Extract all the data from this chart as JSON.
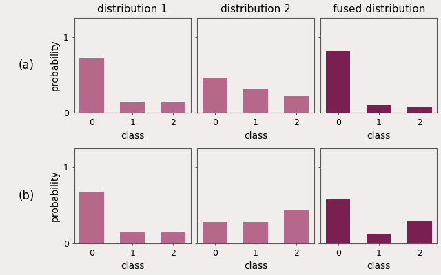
{
  "rows": 2,
  "cols": 3,
  "col_titles": [
    "distribution 1",
    "distribution 2",
    "fused distribution"
  ],
  "row_labels": [
    "(a)",
    "(b)"
  ],
  "xlabel": "class",
  "ylabel": "probability",
  "classes": [
    0,
    1,
    2
  ],
  "ylim": [
    0,
    1.25
  ],
  "yticks": [
    0,
    1
  ],
  "data": [
    [
      [
        0.72,
        0.14,
        0.14
      ],
      [
        0.46,
        0.32,
        0.22
      ],
      [
        0.82,
        0.1,
        0.08
      ]
    ],
    [
      [
        0.68,
        0.16,
        0.16
      ],
      [
        0.28,
        0.28,
        0.44
      ],
      [
        0.58,
        0.13,
        0.29
      ]
    ]
  ],
  "bar_colors": [
    [
      "#b5688a",
      "#b5688a",
      "#7a2050"
    ],
    [
      "#b5688a",
      "#b5688a",
      "#7a2050"
    ]
  ],
  "figsize": [
    6.4,
    4.0
  ],
  "dpi": 100,
  "bar_width": 0.6,
  "bg_color": "#f2eded",
  "title_fontsize": 11,
  "label_fontsize": 10,
  "tick_fontsize": 9
}
